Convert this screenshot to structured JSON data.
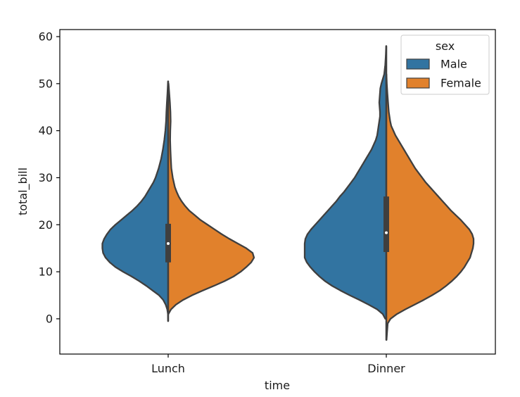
{
  "chart_data": {
    "type": "violin",
    "split": true,
    "xlabel": "time",
    "ylabel": "total_bill",
    "ylim": [
      -7.5,
      61.5
    ],
    "yticks": [
      0,
      10,
      20,
      30,
      40,
      50,
      60
    ],
    "categories": [
      "Lunch",
      "Dinner"
    ],
    "legend": {
      "title": "sex",
      "position": "top-right",
      "entries": [
        {
          "name": "Male",
          "color": "#3274a1"
        },
        {
          "name": "Female",
          "color": "#e1812c"
        }
      ]
    },
    "violins": [
      {
        "category": "Lunch",
        "min": -0.5,
        "max": 50.5,
        "median": 16.0,
        "q1": 12.0,
        "q3": 20.2,
        "male_profile": [
          [
            -0.5,
            0.2
          ],
          [
            1,
            0.3
          ],
          [
            2,
            1.3
          ],
          [
            3,
            3.5
          ],
          [
            4,
            7
          ],
          [
            5,
            13
          ],
          [
            6,
            22
          ],
          [
            7,
            31
          ],
          [
            8,
            41
          ],
          [
            9,
            52
          ],
          [
            10,
            64
          ],
          [
            11,
            75
          ],
          [
            12,
            83
          ],
          [
            13,
            89
          ],
          [
            14,
            92.5
          ],
          [
            15,
            93.5
          ],
          [
            16,
            93.5
          ],
          [
            17,
            91
          ],
          [
            18,
            87
          ],
          [
            19,
            82
          ],
          [
            20,
            75
          ],
          [
            21,
            67
          ],
          [
            22,
            59
          ],
          [
            23,
            51
          ],
          [
            24,
            44
          ],
          [
            25,
            38
          ],
          [
            26,
            33
          ],
          [
            27,
            29
          ],
          [
            28,
            25
          ],
          [
            29,
            21
          ],
          [
            30,
            18
          ],
          [
            32,
            13.5
          ],
          [
            34,
            10
          ],
          [
            36,
            7.5
          ],
          [
            38,
            5.5
          ],
          [
            40,
            4
          ],
          [
            42,
            3
          ],
          [
            44,
            2.5
          ],
          [
            46,
            1.8
          ],
          [
            48,
            1
          ],
          [
            50.5,
            0.2
          ]
        ],
        "female_profile": [
          [
            1,
            0.3
          ],
          [
            2,
            4
          ],
          [
            3,
            11
          ],
          [
            4,
            21
          ],
          [
            5,
            34
          ],
          [
            6,
            49
          ],
          [
            7,
            65
          ],
          [
            8,
            80
          ],
          [
            9,
            93
          ],
          [
            10,
            103
          ],
          [
            11,
            111
          ],
          [
            12,
            118
          ],
          [
            13,
            122
          ],
          [
            14,
            120
          ],
          [
            15,
            111
          ],
          [
            16,
            99
          ],
          [
            17,
            87
          ],
          [
            18,
            76
          ],
          [
            19,
            66
          ],
          [
            20,
            56
          ],
          [
            21,
            46
          ],
          [
            22,
            38
          ],
          [
            23,
            30
          ],
          [
            24,
            24
          ],
          [
            25,
            19
          ],
          [
            26,
            15
          ],
          [
            27,
            12
          ],
          [
            28,
            9.5
          ],
          [
            30,
            6.5
          ],
          [
            32,
            4.5
          ],
          [
            34,
            3.8
          ],
          [
            36,
            3.2
          ],
          [
            38,
            2.8
          ],
          [
            40,
            3
          ],
          [
            42,
            3.5
          ],
          [
            44,
            3.2
          ],
          [
            46,
            2.5
          ],
          [
            48,
            1.5
          ],
          [
            50,
            0.5
          ]
        ]
      },
      {
        "category": "Dinner",
        "min": -4.5,
        "max": 58.0,
        "median": 18.3,
        "q1": 14.2,
        "q3": 26.0,
        "male_profile": [
          [
            0,
            1.5
          ],
          [
            1,
            5
          ],
          [
            2,
            13
          ],
          [
            3,
            25
          ],
          [
            4,
            38
          ],
          [
            5,
            52
          ],
          [
            6,
            65
          ],
          [
            7,
            77
          ],
          [
            8,
            87
          ],
          [
            9,
            95
          ],
          [
            10,
            102
          ],
          [
            11,
            108
          ],
          [
            12,
            113
          ],
          [
            13,
            116
          ],
          [
            14,
            116
          ],
          [
            15,
            116
          ],
          [
            16,
            116
          ],
          [
            17,
            115
          ],
          [
            18,
            112
          ],
          [
            19,
            107
          ],
          [
            20,
            101
          ],
          [
            21,
            95
          ],
          [
            22,
            89
          ],
          [
            23,
            83
          ],
          [
            24,
            77
          ],
          [
            25,
            71
          ],
          [
            26,
            66
          ],
          [
            27,
            60
          ],
          [
            28,
            55
          ],
          [
            29,
            50
          ],
          [
            30,
            45
          ],
          [
            31,
            41
          ],
          [
            32,
            37
          ],
          [
            33,
            33
          ],
          [
            34,
            29
          ],
          [
            35,
            25
          ],
          [
            36,
            21
          ],
          [
            37,
            18
          ],
          [
            38,
            15
          ],
          [
            39,
            13
          ],
          [
            40,
            12
          ],
          [
            41,
            11
          ],
          [
            42,
            10
          ],
          [
            43,
            9
          ],
          [
            44,
            9
          ],
          [
            45,
            9.5
          ],
          [
            46,
            10
          ],
          [
            47,
            9.5
          ],
          [
            48,
            9
          ],
          [
            49,
            8.5
          ],
          [
            50,
            7
          ],
          [
            51,
            5
          ],
          [
            52,
            3
          ],
          [
            54,
            1.5
          ],
          [
            56,
            0.7
          ],
          [
            58,
            0.2
          ]
        ],
        "female_profile": [
          [
            -4.5,
            0.3
          ],
          [
            -3,
            1
          ],
          [
            -1,
            2
          ],
          [
            0,
            6
          ],
          [
            1,
            15
          ],
          [
            2,
            27
          ],
          [
            3,
            40
          ],
          [
            4,
            53
          ],
          [
            5,
            65
          ],
          [
            6,
            76
          ],
          [
            7,
            85
          ],
          [
            8,
            93
          ],
          [
            9,
            100
          ],
          [
            10,
            106
          ],
          [
            11,
            111
          ],
          [
            12,
            115
          ],
          [
            13,
            119
          ],
          [
            14,
            121
          ],
          [
            15,
            123
          ],
          [
            16,
            124
          ],
          [
            17,
            124
          ],
          [
            18,
            122
          ],
          [
            19,
            118
          ],
          [
            20,
            112
          ],
          [
            21,
            106
          ],
          [
            22,
            99
          ],
          [
            23,
            92
          ],
          [
            24,
            86
          ],
          [
            25,
            80
          ],
          [
            26,
            74
          ],
          [
            27,
            68
          ],
          [
            28,
            62
          ],
          [
            29,
            56
          ],
          [
            30,
            51
          ],
          [
            31,
            46
          ],
          [
            32,
            41
          ],
          [
            33,
            37
          ],
          [
            34,
            33
          ],
          [
            35,
            29
          ],
          [
            36,
            25
          ],
          [
            37,
            21
          ],
          [
            38,
            17
          ],
          [
            39,
            13
          ],
          [
            40,
            10
          ],
          [
            41,
            7
          ],
          [
            42,
            5.5
          ],
          [
            43,
            4.5
          ],
          [
            44,
            3.5
          ],
          [
            46,
            2.5
          ],
          [
            48,
            1.5
          ],
          [
            50,
            0.7
          ],
          [
            52,
            0.2
          ]
        ]
      }
    ]
  }
}
